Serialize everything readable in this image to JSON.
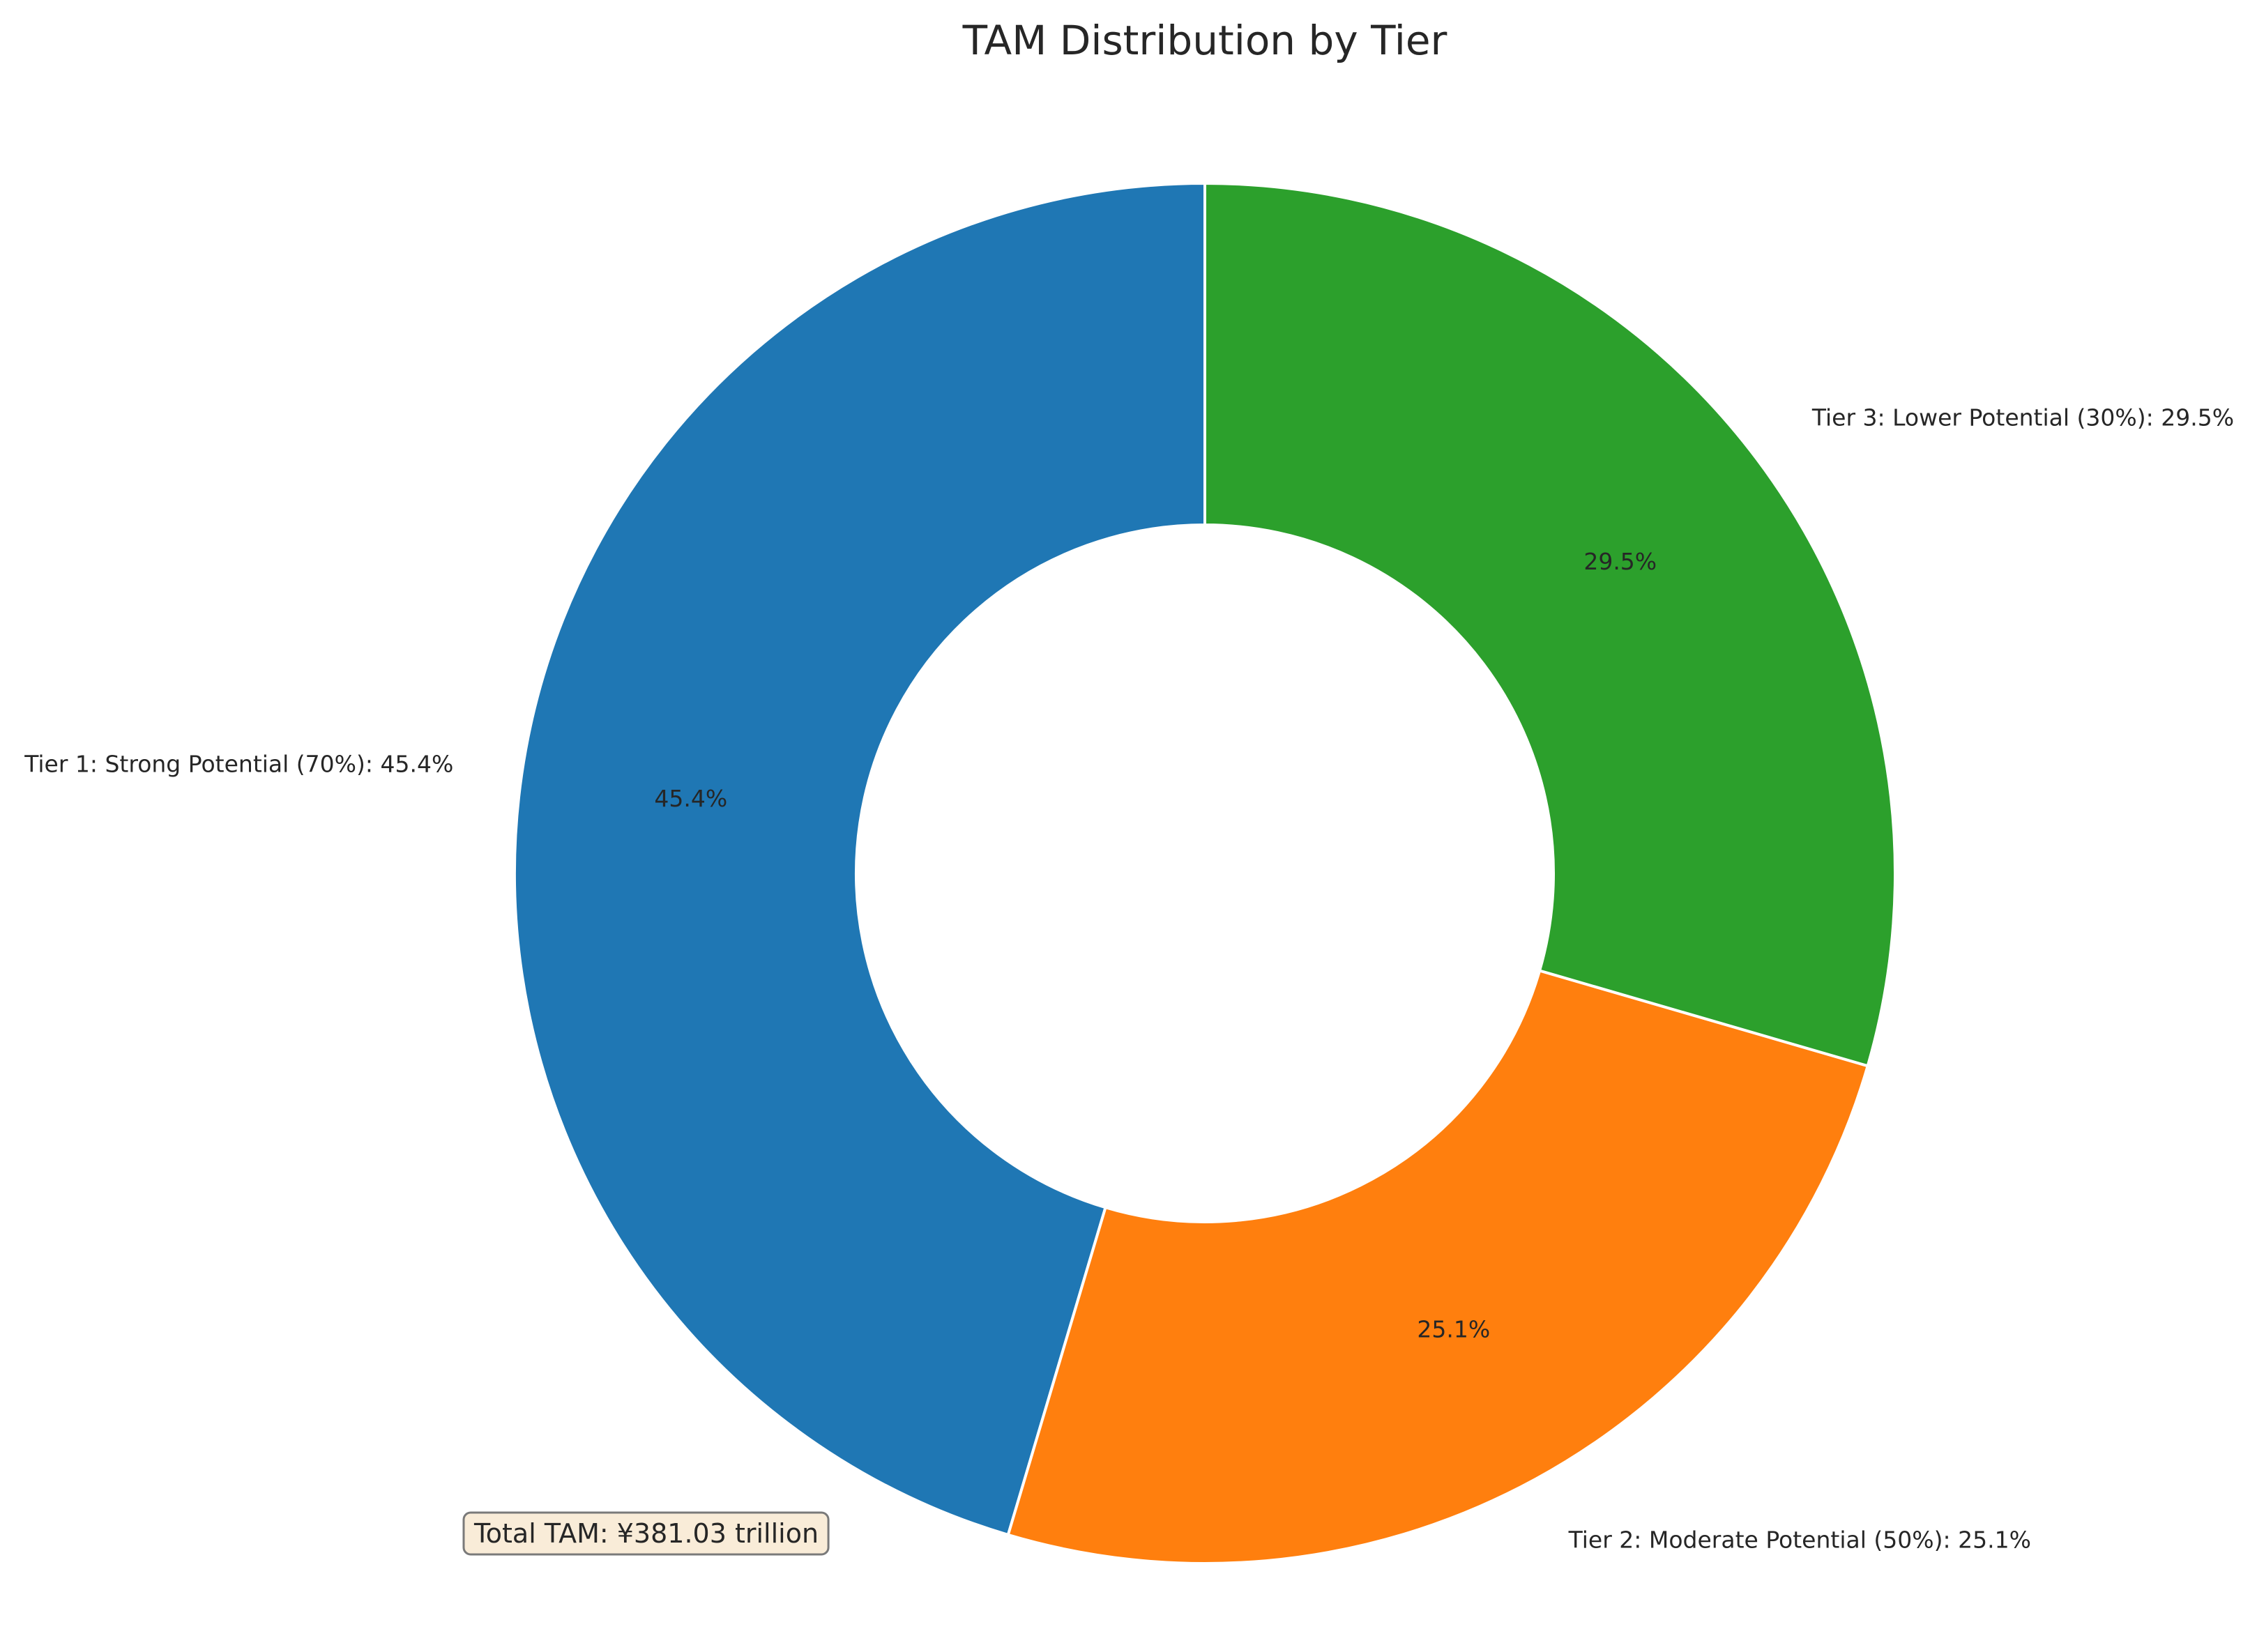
{
  "chart_data": {
    "type": "pie",
    "variant": "donut",
    "title": "TAM Distribution by Tier",
    "start_angle": "top (12 o'clock), counter-clockwise",
    "slices": [
      {
        "label": "Tier 1: Strong Potential (70%): 45.4%",
        "value": 45.4,
        "pct_label": "45.4%",
        "color": "#1f77b4"
      },
      {
        "label": "Tier 2: Moderate Potential (50%): 25.1%",
        "value": 25.1,
        "pct_label": "25.1%",
        "color": "#ff7f0e"
      },
      {
        "label": "Tier 3: Lower Potential (30%): 29.5%",
        "value": 29.5,
        "pct_label": "29.5%",
        "color": "#2ca02c"
      }
    ],
    "annotation": {
      "text": "Total TAM: ¥381.03 trillion",
      "background": "#f9ecd8",
      "border": "#7a7a7a"
    }
  }
}
